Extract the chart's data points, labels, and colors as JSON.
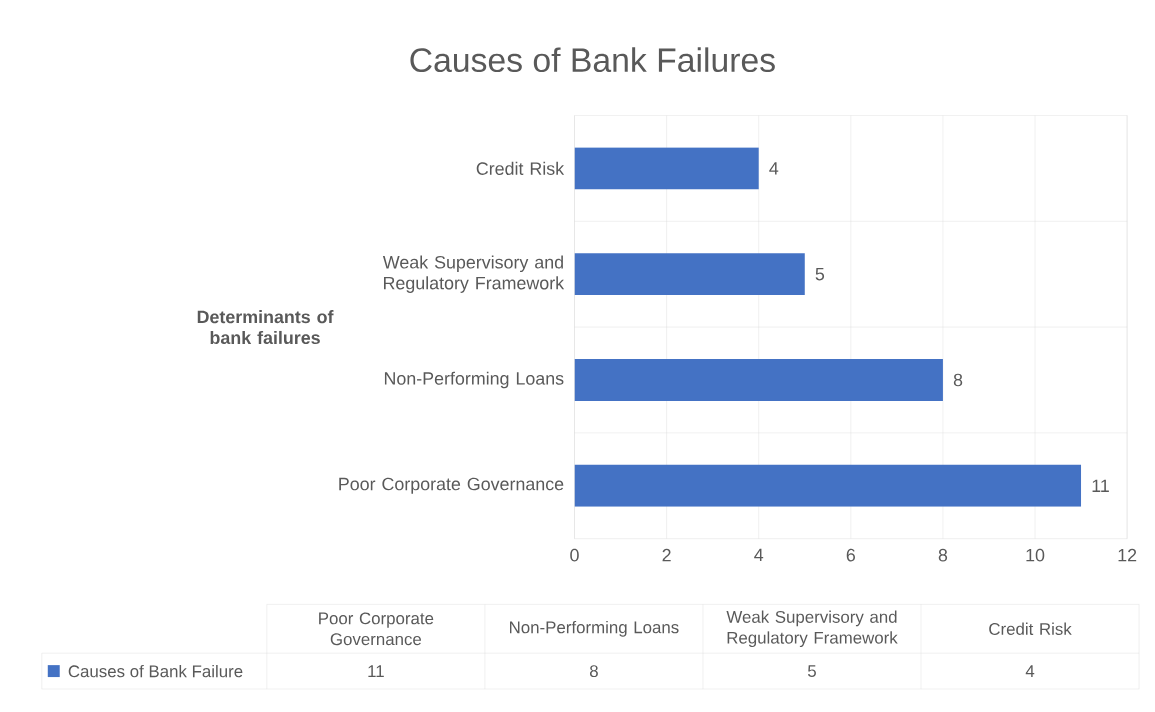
{
  "chart_data": {
    "type": "bar",
    "orientation": "horizontal",
    "title": "Causes of Bank Failures",
    "ylabel": "Determinants of bank failures",
    "categories": [
      "Credit Risk",
      "Weak Supervisory and Regulatory Framework",
      "Non-Performing Loans",
      "Poor Corporate Governance"
    ],
    "series": [
      {
        "name": "Causes of Bank Failure",
        "color": "#4472c4",
        "values": [
          4,
          5,
          8,
          11
        ],
        "value_labels": [
          "4",
          "5",
          "8",
          "11"
        ]
      }
    ],
    "xlim": [
      0,
      12
    ],
    "xticks": [
      0,
      2,
      4,
      6,
      8,
      10,
      12
    ],
    "grid": true,
    "legend": "bottom"
  }
}
